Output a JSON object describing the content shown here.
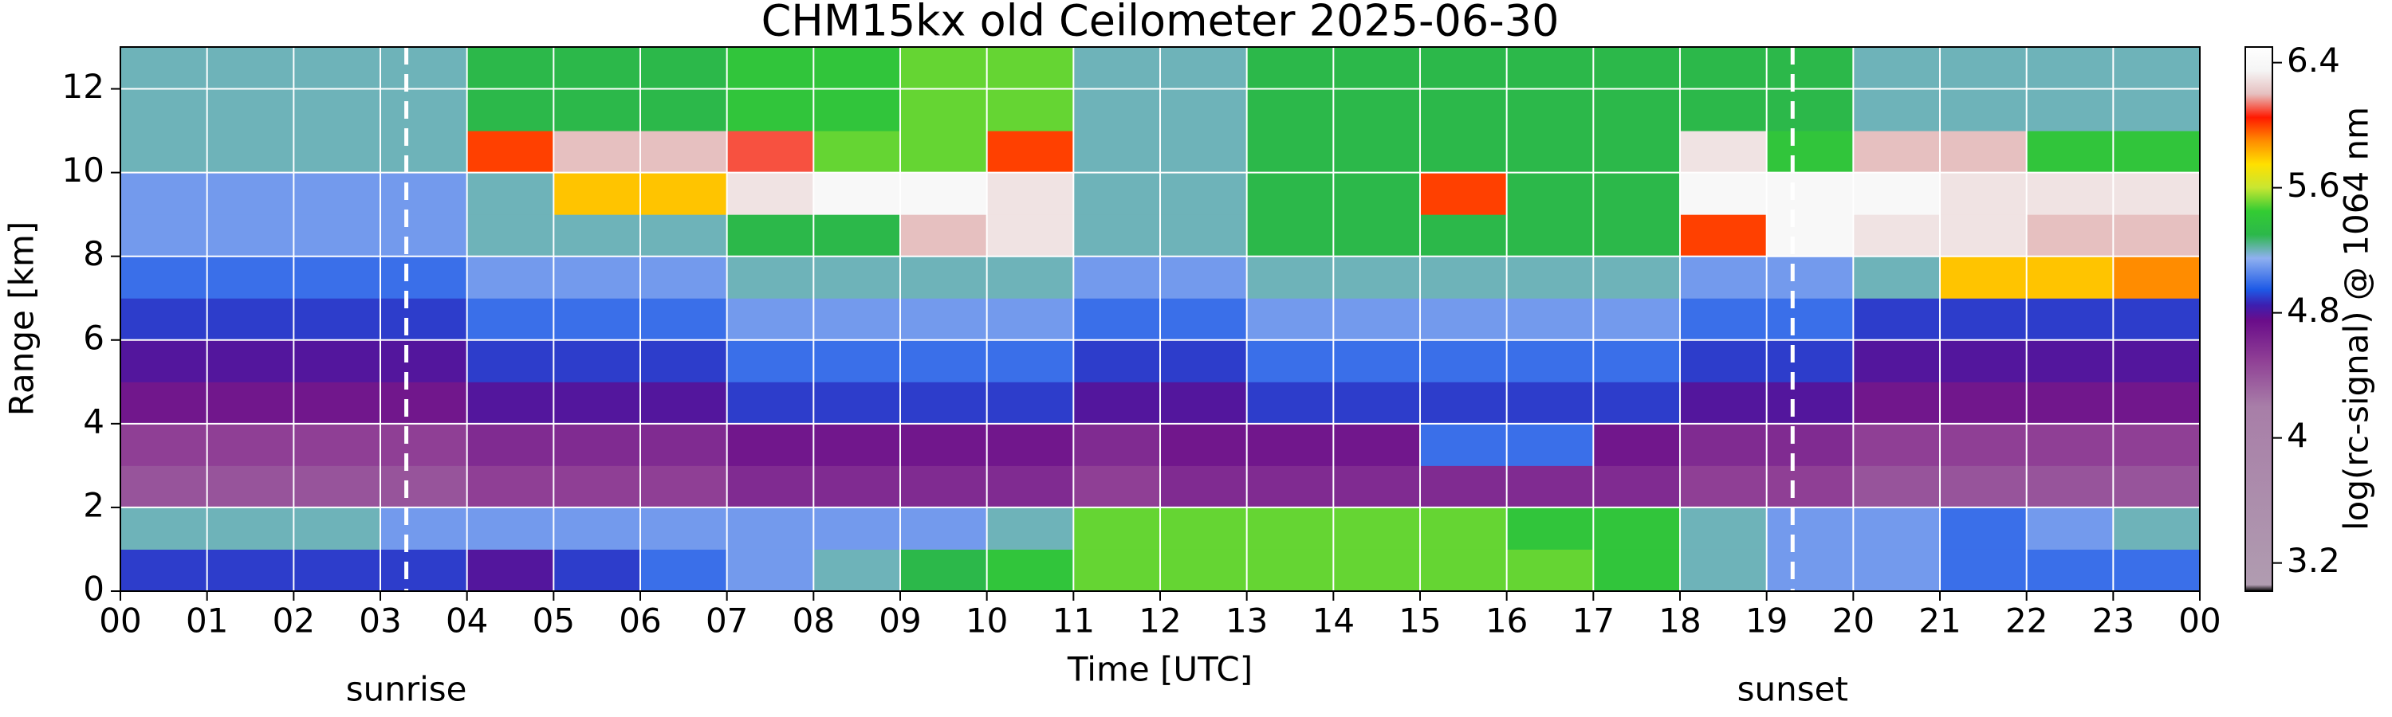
{
  "chart_data": {
    "type": "heatmap",
    "title": "CHM15kx old Ceilometer 2025-06-30",
    "xlabel": "Time [UTC]",
    "ylabel": "Range [km]",
    "colorbar_label": "log(rc-signal) @ 1064 nm",
    "xlim": [
      0,
      24
    ],
    "ylim": [
      0,
      13
    ],
    "zlim": [
      3.02,
      6.5
    ],
    "xticks": [
      {
        "value": 0,
        "label": "00"
      },
      {
        "value": 1,
        "label": "01"
      },
      {
        "value": 2,
        "label": "02"
      },
      {
        "value": 3,
        "label": "03"
      },
      {
        "value": 4,
        "label": "04"
      },
      {
        "value": 5,
        "label": "05"
      },
      {
        "value": 6,
        "label": "06"
      },
      {
        "value": 7,
        "label": "07"
      },
      {
        "value": 8,
        "label": "08"
      },
      {
        "value": 9,
        "label": "09"
      },
      {
        "value": 10,
        "label": "10"
      },
      {
        "value": 11,
        "label": "11"
      },
      {
        "value": 12,
        "label": "12"
      },
      {
        "value": 13,
        "label": "13"
      },
      {
        "value": 14,
        "label": "14"
      },
      {
        "value": 15,
        "label": "15"
      },
      {
        "value": 16,
        "label": "16"
      },
      {
        "value": 17,
        "label": "17"
      },
      {
        "value": 18,
        "label": "18"
      },
      {
        "value": 19,
        "label": "19"
      },
      {
        "value": 20,
        "label": "20"
      },
      {
        "value": 21,
        "label": "21"
      },
      {
        "value": 22,
        "label": "22"
      },
      {
        "value": 23,
        "label": "23"
      },
      {
        "value": 24,
        "label": "00"
      }
    ],
    "yticks": [
      0,
      2,
      4,
      6,
      8,
      10,
      12
    ],
    "zticks": [
      3.2,
      4,
      4.8,
      5.6,
      6.4
    ],
    "grid": true,
    "annotations": [
      {
        "text": "sunrise",
        "x": 3.3
      },
      {
        "text": "sunset",
        "x": 19.3
      }
    ],
    "colormap": [
      {
        "value": 3.02,
        "color": "#000000"
      },
      {
        "value": 3.06,
        "color": "#b09cb0"
      },
      {
        "value": 4.2,
        "color": "#a87ea8"
      },
      {
        "value": 4.5,
        "color": "#8f3f95"
      },
      {
        "value": 4.75,
        "color": "#6a0d8a"
      },
      {
        "value": 4.85,
        "color": "#3c1fb0"
      },
      {
        "value": 4.95,
        "color": "#1e5ae6"
      },
      {
        "value": 5.15,
        "color": "#8fb0f0"
      },
      {
        "value": 5.3,
        "color": "#2cb84a"
      },
      {
        "value": 5.45,
        "color": "#33cc33"
      },
      {
        "value": 5.6,
        "color": "#c8e632"
      },
      {
        "value": 5.75,
        "color": "#ffe000"
      },
      {
        "value": 5.9,
        "color": "#ff8c00"
      },
      {
        "value": 6.05,
        "color": "#ff1a00"
      },
      {
        "value": 6.2,
        "color": "#e6c0c0"
      },
      {
        "value": 6.35,
        "color": "#f5f5f5"
      },
      {
        "value": 6.5,
        "color": "#ffffff"
      }
    ],
    "x_bins": [
      0,
      1,
      2,
      3,
      4,
      5,
      6,
      7,
      8,
      9,
      10,
      11,
      12,
      13,
      14,
      15,
      16,
      17,
      18,
      19,
      20,
      21,
      22,
      23,
      24
    ],
    "y_bins": [
      0,
      1,
      2,
      3,
      4,
      5,
      6,
      7,
      8,
      9,
      10,
      11,
      12,
      13
    ],
    "z": [
      [
        4.9,
        4.9,
        4.9,
        4.9,
        4.8,
        4.9,
        5.0,
        5.1,
        5.2,
        5.3,
        5.4,
        5.5,
        5.5,
        5.5,
        5.5,
        5.5,
        5.5,
        5.4,
        5.2,
        5.1,
        5.1,
        5.0,
        5.0,
        5.0
      ],
      [
        5.2,
        5.2,
        5.2,
        5.1,
        5.1,
        5.1,
        5.1,
        5.1,
        5.1,
        5.1,
        5.2,
        5.5,
        5.5,
        5.5,
        5.5,
        5.5,
        5.4,
        5.4,
        5.2,
        5.1,
        5.1,
        5.0,
        5.1,
        5.2
      ],
      [
        4.4,
        4.4,
        4.4,
        4.4,
        4.5,
        4.5,
        4.5,
        4.6,
        4.6,
        4.6,
        4.6,
        4.5,
        4.6,
        4.6,
        4.6,
        4.6,
        4.6,
        4.6,
        4.5,
        4.5,
        4.4,
        4.4,
        4.4,
        4.4
      ],
      [
        4.5,
        4.5,
        4.5,
        4.5,
        4.6,
        4.6,
        4.6,
        4.7,
        4.7,
        4.7,
        4.7,
        4.6,
        4.7,
        4.7,
        4.7,
        5.0,
        5.0,
        4.7,
        4.6,
        4.6,
        4.5,
        4.5,
        4.5,
        4.5
      ],
      [
        4.7,
        4.7,
        4.7,
        4.7,
        4.8,
        4.8,
        4.8,
        4.9,
        4.9,
        4.9,
        4.9,
        4.8,
        4.8,
        4.9,
        4.9,
        4.9,
        4.9,
        4.9,
        4.8,
        4.8,
        4.7,
        4.7,
        4.7,
        4.7
      ],
      [
        4.8,
        4.8,
        4.8,
        4.8,
        4.9,
        4.9,
        4.9,
        5.0,
        5.0,
        5.0,
        5.0,
        4.9,
        4.9,
        5.0,
        5.0,
        5.0,
        5.0,
        5.0,
        4.9,
        4.9,
        4.8,
        4.8,
        4.8,
        4.8
      ],
      [
        4.9,
        4.9,
        4.9,
        4.9,
        5.0,
        5.0,
        5.0,
        5.1,
        5.1,
        5.1,
        5.1,
        5.0,
        5.0,
        5.1,
        5.1,
        5.1,
        5.1,
        5.1,
        5.0,
        5.0,
        4.9,
        4.9,
        4.9,
        4.9
      ],
      [
        5.0,
        5.0,
        5.0,
        5.0,
        5.1,
        5.1,
        5.1,
        5.2,
        5.2,
        5.2,
        5.2,
        5.1,
        5.1,
        5.2,
        5.2,
        5.2,
        5.2,
        5.2,
        5.1,
        5.1,
        5.2,
        5.8,
        5.8,
        5.9
      ],
      [
        5.1,
        5.1,
        5.1,
        5.1,
        5.2,
        5.2,
        5.2,
        5.3,
        5.3,
        6.2,
        6.3,
        5.2,
        5.2,
        5.3,
        5.3,
        5.3,
        5.3,
        5.3,
        6.0,
        6.4,
        6.3,
        6.3,
        6.2,
        6.2
      ],
      [
        5.1,
        5.1,
        5.1,
        5.1,
        5.2,
        5.8,
        5.8,
        6.3,
        6.4,
        6.4,
        6.3,
        5.2,
        5.2,
        5.3,
        5.3,
        6.0,
        5.3,
        5.3,
        6.4,
        6.4,
        6.4,
        6.3,
        6.3,
        6.3
      ],
      [
        5.2,
        5.2,
        5.2,
        5.2,
        6.0,
        6.2,
        6.2,
        6.1,
        5.5,
        5.5,
        6.0,
        5.2,
        5.2,
        5.3,
        5.3,
        5.3,
        5.3,
        5.3,
        6.3,
        5.4,
        6.2,
        6.2,
        5.4,
        5.4
      ],
      [
        5.2,
        5.2,
        5.2,
        5.2,
        5.3,
        5.3,
        5.3,
        5.4,
        5.4,
        5.5,
        5.5,
        5.2,
        5.2,
        5.3,
        5.3,
        5.3,
        5.3,
        5.3,
        5.3,
        5.3,
        5.2,
        5.2,
        5.2,
        5.2
      ],
      [
        5.2,
        5.2,
        5.2,
        5.2,
        5.3,
        5.3,
        5.3,
        5.4,
        5.4,
        5.5,
        5.5,
        5.2,
        5.2,
        5.3,
        5.3,
        5.3,
        5.3,
        5.3,
        5.3,
        5.3,
        5.2,
        5.2,
        5.2,
        5.2
      ]
    ]
  }
}
